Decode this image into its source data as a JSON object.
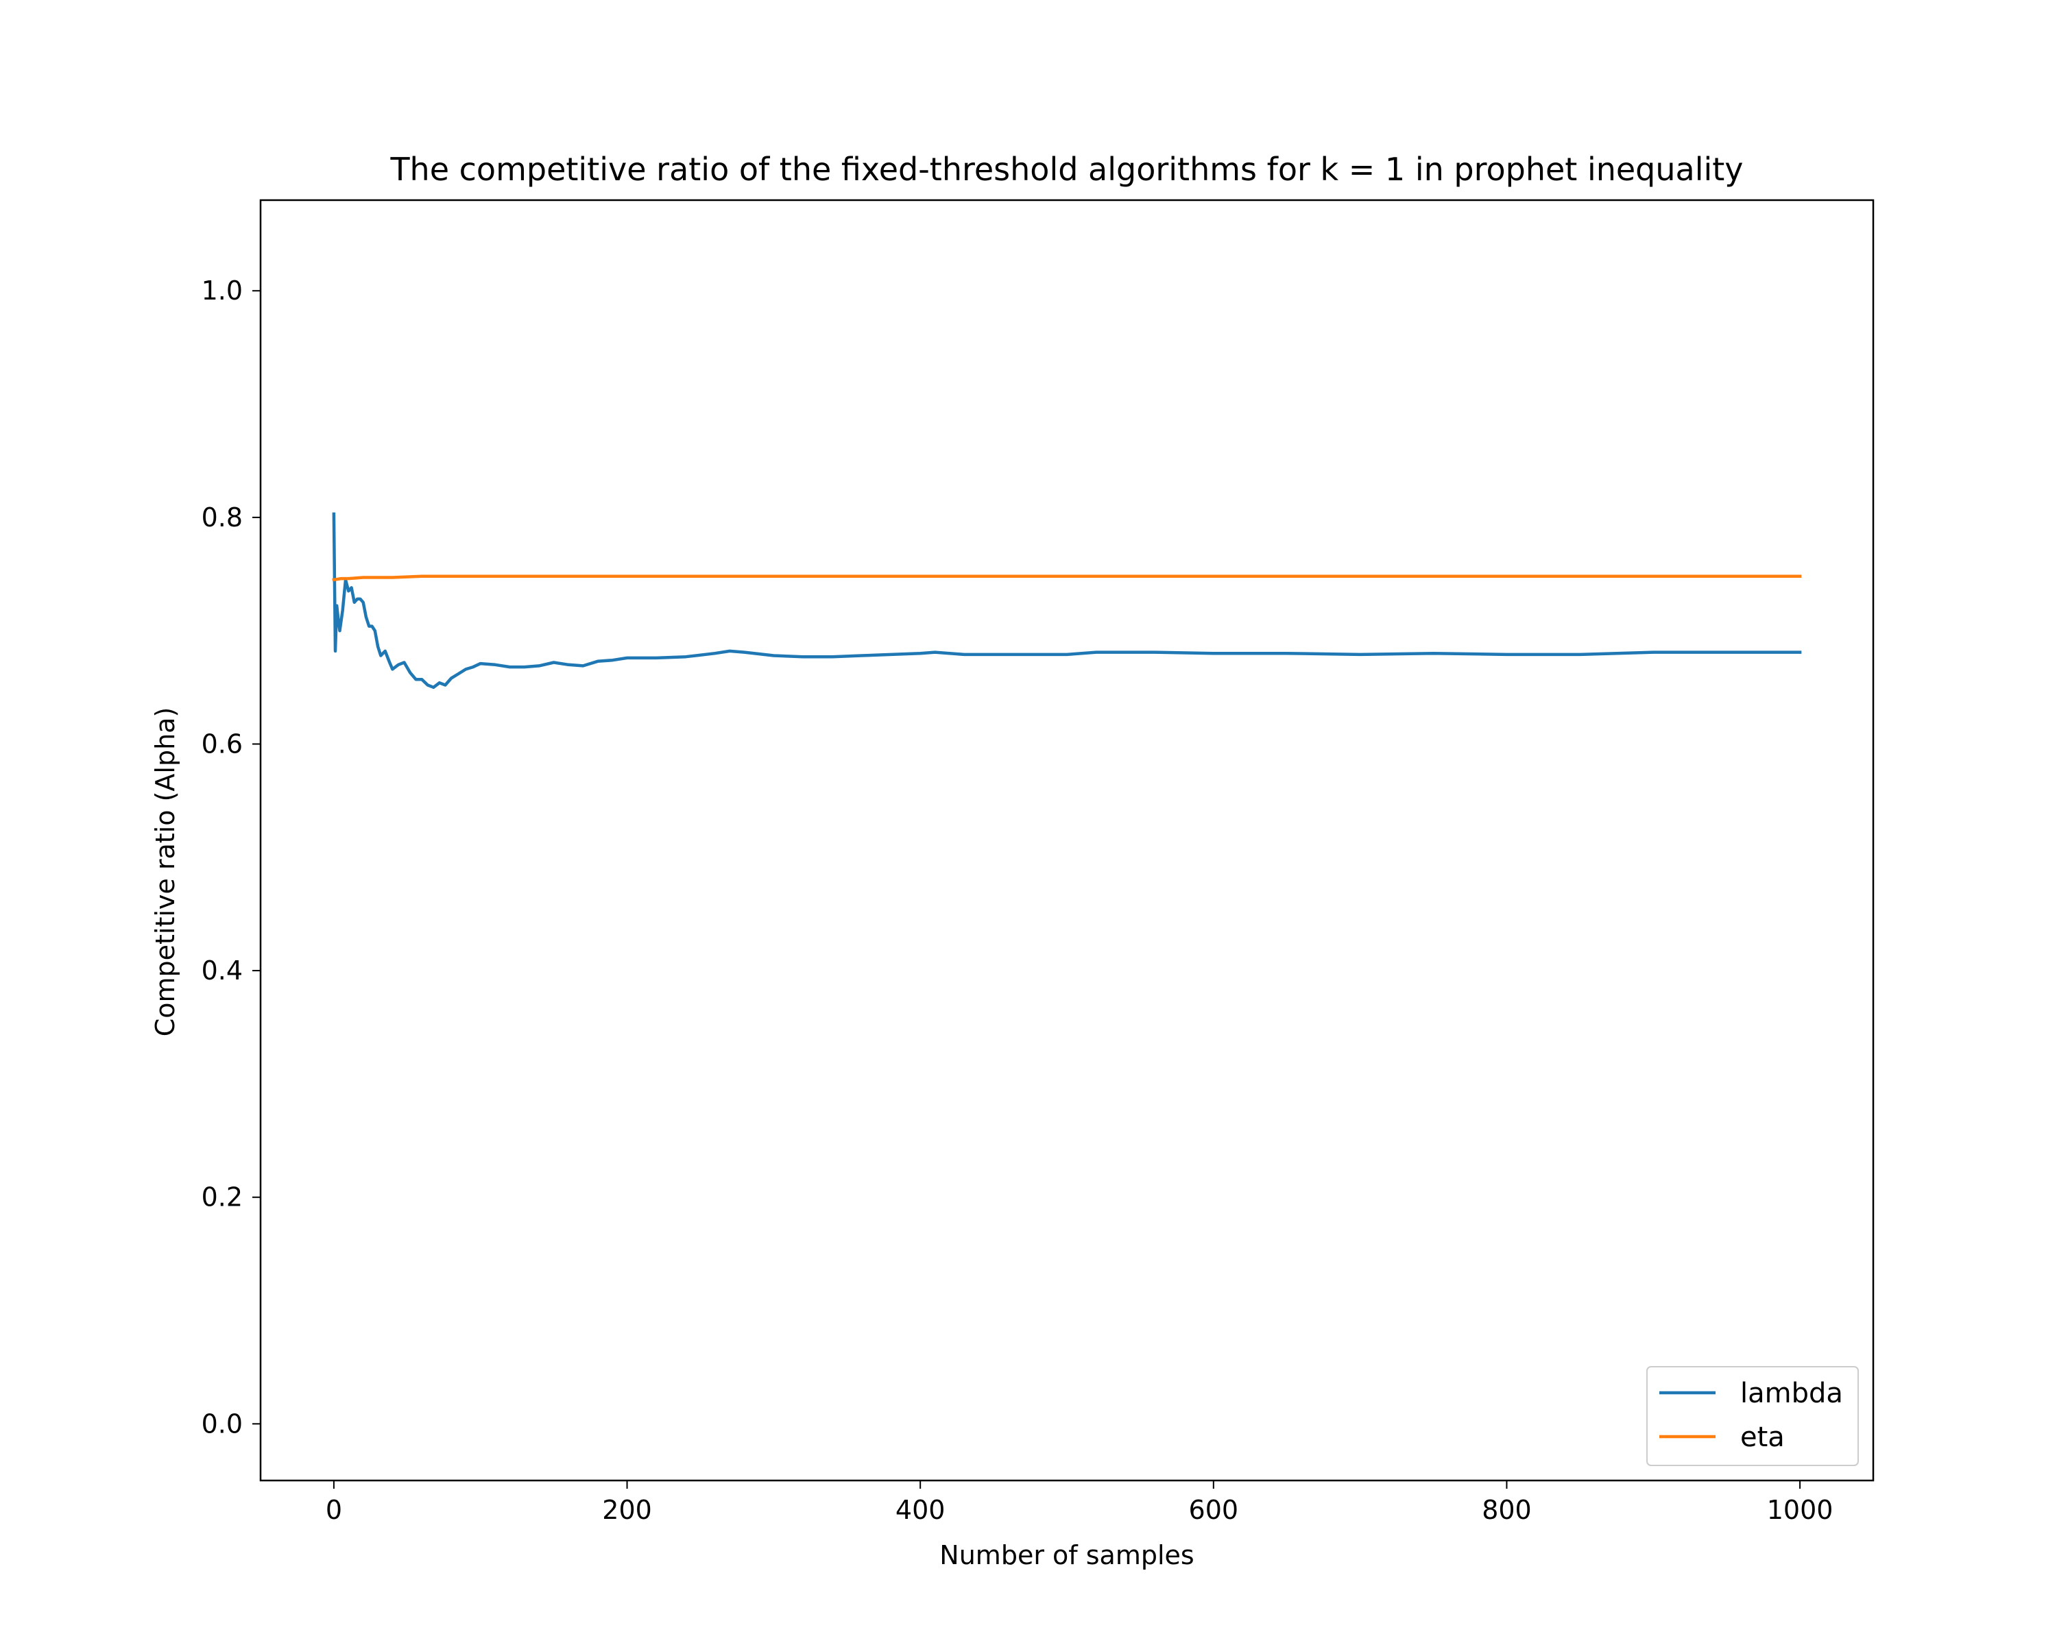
{
  "chart_data": {
    "type": "line",
    "title": "The competitive ratio of the fixed-threshold algorithms for k = 1 in prophet inequality",
    "xlabel": "Number of samples",
    "ylabel": "Competitive ratio (Alpha)",
    "xlim": [
      -50,
      1050
    ],
    "ylim": [
      -0.05,
      1.08
    ],
    "xticks": [
      0,
      200,
      400,
      600,
      800,
      1000
    ],
    "xtick_labels": [
      "0",
      "200",
      "400",
      "600",
      "800",
      "1000"
    ],
    "yticks": [
      0.0,
      0.2,
      0.4,
      0.6,
      0.8,
      1.0
    ],
    "ytick_labels": [
      "0.0",
      "0.2",
      "0.4",
      "0.6",
      "0.8",
      "1.0"
    ],
    "grid": false,
    "legend_position": "lower-right",
    "series": [
      {
        "name": "lambda",
        "color": "#1f77b4",
        "x": [
          0,
          1,
          2,
          3,
          4,
          6,
          8,
          10,
          12,
          14,
          16,
          18,
          20,
          22,
          24,
          26,
          28,
          30,
          32,
          35,
          38,
          40,
          44,
          48,
          52,
          56,
          60,
          64,
          68,
          72,
          76,
          80,
          85,
          90,
          95,
          100,
          110,
          120,
          130,
          140,
          150,
          160,
          170,
          180,
          190,
          200,
          220,
          240,
          260,
          270,
          280,
          300,
          320,
          340,
          360,
          380,
          400,
          410,
          430,
          460,
          500,
          520,
          560,
          600,
          650,
          700,
          750,
          800,
          850,
          900,
          950,
          1000
        ],
        "y": [
          0.803,
          0.682,
          0.722,
          0.71,
          0.7,
          0.718,
          0.745,
          0.735,
          0.738,
          0.725,
          0.728,
          0.728,
          0.725,
          0.712,
          0.704,
          0.704,
          0.7,
          0.686,
          0.678,
          0.682,
          0.672,
          0.666,
          0.67,
          0.672,
          0.663,
          0.657,
          0.657,
          0.652,
          0.65,
          0.654,
          0.652,
          0.658,
          0.662,
          0.666,
          0.668,
          0.671,
          0.67,
          0.668,
          0.668,
          0.669,
          0.672,
          0.67,
          0.669,
          0.673,
          0.674,
          0.676,
          0.676,
          0.677,
          0.68,
          0.682,
          0.681,
          0.678,
          0.677,
          0.677,
          0.678,
          0.679,
          0.68,
          0.681,
          0.679,
          0.679,
          0.679,
          0.681,
          0.681,
          0.68,
          0.68,
          0.679,
          0.68,
          0.679,
          0.679,
          0.681,
          0.681,
          0.681
        ]
      },
      {
        "name": "eta",
        "color": "#ff7f0e",
        "x": [
          0,
          5,
          10,
          20,
          40,
          60,
          100,
          200,
          1000
        ],
        "y": [
          0.745,
          0.746,
          0.746,
          0.747,
          0.747,
          0.748,
          0.748,
          0.748,
          0.748
        ]
      }
    ]
  }
}
